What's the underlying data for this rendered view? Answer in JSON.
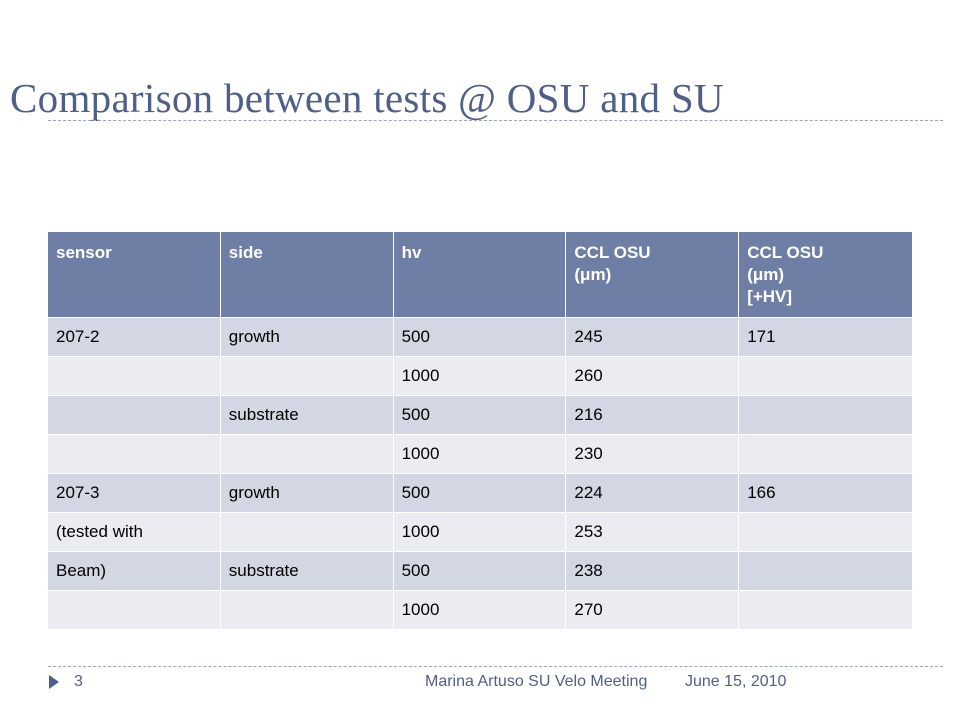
{
  "slide": {
    "title": "Comparison between tests @ OSU and SU"
  },
  "table": {
    "headers": [
      [
        "sensor"
      ],
      [
        "side"
      ],
      [
        "hv"
      ],
      [
        "CCL OSU",
        "(μm)"
      ],
      [
        "CCL OSU",
        "(μm)",
        "[+HV]"
      ]
    ],
    "rows": [
      [
        "207-2",
        "growth",
        "500",
        "245",
        "171"
      ],
      [
        "",
        "",
        "1000",
        "260",
        ""
      ],
      [
        "",
        "substrate",
        "500",
        "216",
        ""
      ],
      [
        "",
        "",
        "1000",
        "230",
        ""
      ],
      [
        "207-3",
        "growth",
        "500",
        "224",
        "166"
      ],
      [
        "(tested with",
        "",
        "1000",
        "253",
        ""
      ],
      [
        "Beam)",
        "substrate",
        "500",
        "238",
        ""
      ],
      [
        "",
        "",
        "1000",
        "270",
        ""
      ]
    ]
  },
  "footer": {
    "page_number": "3",
    "author": "Marina Artuso SU Velo Meeting",
    "date": "June 15, 2010"
  },
  "colors": {
    "title": "#4f5f87",
    "header_fill": "#6f7ea5",
    "row_odd": "#d3d6e3",
    "row_even": "#eaecf2"
  }
}
